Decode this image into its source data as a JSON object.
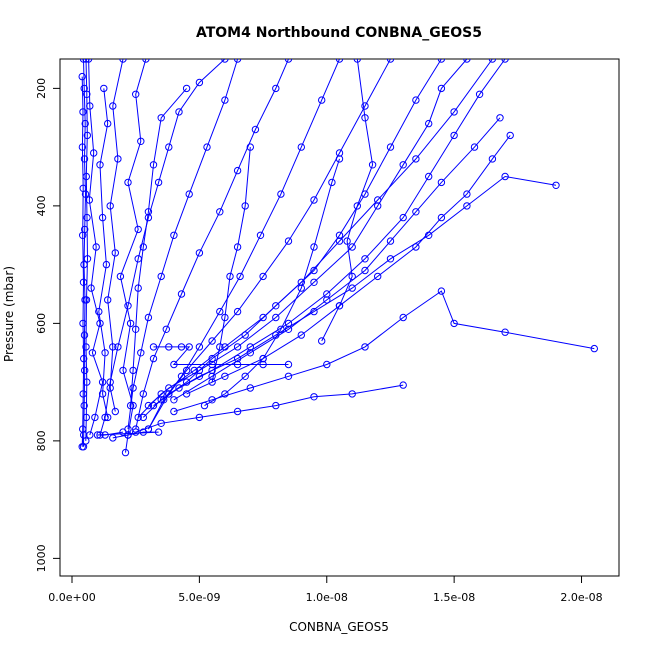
{
  "chart_data": {
    "type": "line",
    "title": "ATOM4 Northbound CONBNA_GEOS5",
    "xlabel": "CONBNA_GEOS5",
    "ylabel": "Pressure (mbar)",
    "xlim": [
      0,
      2.1e-08
    ],
    "ylim": [
      1030,
      150
    ],
    "y_reversed": true,
    "grid": false,
    "legend": "none",
    "x_ticks": [
      {
        "value": 0,
        "label": "0.0e+00"
      },
      {
        "value": 5e-09,
        "label": "5.0e-09"
      },
      {
        "value": 1e-08,
        "label": "1.0e-08"
      },
      {
        "value": 1.5e-08,
        "label": "1.5e-08"
      },
      {
        "value": 2e-08,
        "label": "2.0e-08"
      }
    ],
    "y_ticks": [
      {
        "value": 200,
        "label": "200"
      },
      {
        "value": 400,
        "label": "400"
      },
      {
        "value": 600,
        "label": "600"
      },
      {
        "value": 800,
        "label": "800"
      },
      {
        "value": 1000,
        "label": "1000"
      }
    ],
    "color": "#0000ff",
    "series": [
      {
        "points": [
          [
            4.5e-10,
            150
          ],
          [
            4.8e-10,
            200
          ],
          [
            5.2e-10,
            260
          ],
          [
            4.9e-10,
            320
          ],
          [
            5.3e-10,
            380
          ],
          [
            5e-10,
            440
          ],
          [
            4.7e-10,
            500
          ],
          [
            5.1e-10,
            560
          ],
          [
            4.9e-10,
            620
          ],
          [
            5e-10,
            680
          ],
          [
            4.8e-10,
            740
          ],
          [
            4.6e-10,
            790
          ],
          [
            4.5e-10,
            810
          ]
        ]
      },
      {
        "points": [
          [
            5.5e-10,
            150
          ],
          [
            5.8e-10,
            210
          ],
          [
            6e-10,
            280
          ],
          [
            5.6e-10,
            350
          ],
          [
            5.9e-10,
            420
          ],
          [
            6.1e-10,
            490
          ],
          [
            5.7e-10,
            560
          ],
          [
            5.5e-10,
            640
          ],
          [
            5.8e-10,
            700
          ],
          [
            5.6e-10,
            760
          ],
          [
            5.4e-10,
            800
          ]
        ]
      },
      {
        "points": [
          [
            4e-10,
            180
          ],
          [
            4.3e-10,
            240
          ],
          [
            4.1e-10,
            300
          ],
          [
            4.4e-10,
            370
          ],
          [
            4.2e-10,
            450
          ],
          [
            4.5e-10,
            530
          ],
          [
            4.3e-10,
            600
          ],
          [
            4.6e-10,
            660
          ],
          [
            4.4e-10,
            720
          ],
          [
            4.2e-10,
            780
          ],
          [
            4e-10,
            810
          ]
        ]
      },
      {
        "points": [
          [
            6.5e-10,
            150
          ],
          [
            7e-10,
            230
          ],
          [
            8.5e-10,
            310
          ],
          [
            6.8e-10,
            390
          ],
          [
            9.5e-10,
            470
          ],
          [
            7.5e-10,
            540
          ],
          [
            1.1e-09,
            600
          ],
          [
            8e-10,
            650
          ],
          [
            1.2e-09,
            700
          ],
          [
            9e-10,
            760
          ],
          [
            7e-10,
            790
          ]
        ]
      },
      {
        "points": [
          [
            6e-09,
            150
          ],
          [
            5e-09,
            190
          ],
          [
            4.2e-09,
            240
          ],
          [
            3.8e-09,
            300
          ],
          [
            3.4e-09,
            360
          ],
          [
            3e-09,
            420
          ],
          [
            2.6e-09,
            490
          ],
          [
            2.2e-09,
            570
          ],
          [
            1.8e-09,
            640
          ],
          [
            1.5e-09,
            700
          ],
          [
            1.3e-09,
            760
          ],
          [
            1.1e-09,
            790
          ]
        ]
      },
      {
        "points": [
          [
            2.9e-09,
            150
          ],
          [
            2.5e-09,
            210
          ],
          [
            2.7e-09,
            290
          ],
          [
            2.2e-09,
            360
          ],
          [
            2.6e-09,
            440
          ],
          [
            1.9e-09,
            520
          ],
          [
            2.3e-09,
            600
          ],
          [
            2e-09,
            680
          ],
          [
            2.4e-09,
            740
          ],
          [
            2.2e-09,
            790
          ],
          [
            2.1e-09,
            820
          ]
        ]
      },
      {
        "points": [
          [
            1.25e-09,
            200
          ],
          [
            1.4e-09,
            260
          ],
          [
            1.1e-09,
            330
          ],
          [
            1.2e-09,
            420
          ],
          [
            1.35e-09,
            500
          ],
          [
            1.05e-09,
            580
          ],
          [
            1.3e-09,
            650
          ],
          [
            1.2e-09,
            720
          ],
          [
            1.4e-09,
            760
          ]
        ]
      },
      {
        "points": [
          [
            2e-09,
            150
          ],
          [
            1.6e-09,
            230
          ],
          [
            1.8e-09,
            320
          ],
          [
            1.5e-09,
            400
          ],
          [
            1.7e-09,
            480
          ],
          [
            1.4e-09,
            560
          ],
          [
            1.6e-09,
            640
          ],
          [
            1.5e-09,
            710
          ],
          [
            1.7e-09,
            750
          ]
        ]
      },
      {
        "points": [
          [
            1.55e-08,
            150
          ],
          [
            1.45e-08,
            200
          ],
          [
            1.4e-08,
            260
          ],
          [
            1.3e-08,
            330
          ],
          [
            1.2e-08,
            400
          ],
          [
            1.1e-08,
            470
          ],
          [
            9.5e-09,
            530
          ],
          [
            8e-09,
            590
          ],
          [
            6.5e-09,
            640
          ],
          [
            5e-09,
            680
          ],
          [
            3.8e-09,
            710
          ],
          [
            3e-09,
            740
          ]
        ]
      },
      {
        "points": [
          [
            1.7e-08,
            150
          ],
          [
            1.6e-08,
            210
          ],
          [
            1.5e-08,
            280
          ],
          [
            1.4e-08,
            350
          ],
          [
            1.3e-08,
            420
          ],
          [
            1.15e-08,
            490
          ],
          [
            1e-08,
            550
          ],
          [
            8.5e-09,
            600
          ],
          [
            7e-09,
            640
          ],
          [
            5.5e-09,
            680
          ],
          [
            4.2e-09,
            710
          ],
          [
            3.2e-09,
            740
          ]
        ]
      },
      {
        "points": [
          [
            1.65e-08,
            150
          ],
          [
            1.5e-08,
            240
          ],
          [
            1.35e-08,
            320
          ],
          [
            1.2e-08,
            390
          ],
          [
            1.05e-08,
            460
          ],
          [
            9e-09,
            530
          ],
          [
            7.5e-09,
            590
          ],
          [
            6e-09,
            640
          ],
          [
            4.8e-09,
            680
          ],
          [
            3.5e-09,
            720
          ],
          [
            2.6e-09,
            760
          ]
        ]
      },
      {
        "points": [
          [
            1.45e-08,
            150
          ],
          [
            1.35e-08,
            220
          ],
          [
            1.25e-08,
            300
          ],
          [
            1.15e-08,
            380
          ],
          [
            1.05e-08,
            450
          ],
          [
            9.5e-09,
            510
          ],
          [
            8e-09,
            570
          ],
          [
            6.8e-09,
            620
          ],
          [
            5.5e-09,
            660
          ],
          [
            4.5e-09,
            700
          ],
          [
            3.5e-09,
            730
          ],
          [
            2.8e-09,
            760
          ]
        ]
      },
      {
        "points": [
          [
            1.25e-08,
            150
          ],
          [
            1.15e-08,
            230
          ],
          [
            1.05e-08,
            310
          ],
          [
            9.5e-09,
            390
          ],
          [
            8.5e-09,
            460
          ],
          [
            7.5e-09,
            520
          ],
          [
            6.5e-09,
            580
          ],
          [
            5.5e-09,
            630
          ],
          [
            4.5e-09,
            680
          ],
          [
            3.8e-09,
            720
          ],
          [
            3e-09,
            780
          ]
        ]
      },
      {
        "points": [
          [
            1.05e-08,
            150
          ],
          [
            9.8e-09,
            220
          ],
          [
            9e-09,
            300
          ],
          [
            8.2e-09,
            380
          ],
          [
            7.4e-09,
            450
          ],
          [
            6.6e-09,
            520
          ],
          [
            5.8e-09,
            580
          ],
          [
            5e-09,
            640
          ],
          [
            4.3e-09,
            690
          ],
          [
            3.6e-09,
            730
          ],
          [
            3e-09,
            780
          ]
        ]
      },
      {
        "points": [
          [
            8.5e-09,
            150
          ],
          [
            8e-09,
            200
          ],
          [
            7.2e-09,
            270
          ],
          [
            6.5e-09,
            340
          ],
          [
            5.8e-09,
            410
          ],
          [
            5e-09,
            480
          ],
          [
            4.3e-09,
            550
          ],
          [
            3.7e-09,
            610
          ],
          [
            3.2e-09,
            660
          ],
          [
            2.8e-09,
            720
          ],
          [
            2.5e-09,
            780
          ]
        ]
      },
      {
        "points": [
          [
            6.5e-09,
            150
          ],
          [
            6e-09,
            220
          ],
          [
            5.3e-09,
            300
          ],
          [
            4.6e-09,
            380
          ],
          [
            4e-09,
            450
          ],
          [
            3.5e-09,
            520
          ],
          [
            3e-09,
            590
          ],
          [
            2.7e-09,
            650
          ],
          [
            2.4e-09,
            710
          ],
          [
            2.2e-09,
            780
          ]
        ]
      },
      {
        "points": [
          [
            1.9e-08,
            365
          ],
          [
            1.7e-08,
            350
          ],
          [
            1.55e-08,
            400
          ],
          [
            1.4e-08,
            450
          ],
          [
            1.25e-08,
            490
          ],
          [
            1.1e-08,
            540
          ],
          [
            9.5e-09,
            580
          ],
          [
            8e-09,
            620
          ],
          [
            6.5e-09,
            660
          ],
          [
            5e-09,
            690
          ],
          [
            3.8e-09,
            720
          ]
        ]
      },
      {
        "points": [
          [
            2.05e-08,
            643
          ],
          [
            1.7e-08,
            615
          ],
          [
            1.5e-08,
            600
          ],
          [
            1.45e-08,
            545
          ],
          [
            1.3e-08,
            590
          ],
          [
            1.15e-08,
            640
          ],
          [
            1e-08,
            670
          ],
          [
            8.5e-09,
            690
          ],
          [
            7e-09,
            710
          ],
          [
            5.5e-09,
            730
          ],
          [
            4e-09,
            750
          ]
        ]
      },
      {
        "points": [
          [
            1.3e-08,
            705
          ],
          [
            1.1e-08,
            720
          ],
          [
            9.5e-09,
            725
          ],
          [
            8e-09,
            740
          ],
          [
            6.5e-09,
            750
          ],
          [
            5e-09,
            760
          ],
          [
            3.5e-09,
            770
          ],
          [
            2.5e-09,
            785
          ]
        ]
      },
      {
        "points": [
          [
            1.72e-08,
            280
          ],
          [
            1.65e-08,
            320
          ],
          [
            1.55e-08,
            380
          ],
          [
            1.45e-08,
            420
          ],
          [
            1.35e-08,
            470
          ],
          [
            1.2e-08,
            520
          ],
          [
            1.05e-08,
            570
          ],
          [
            9e-09,
            620
          ],
          [
            7.5e-09,
            660
          ],
          [
            6e-09,
            690
          ],
          [
            4.5e-09,
            720
          ]
        ]
      },
      {
        "points": [
          [
            1.68e-08,
            250
          ],
          [
            1.58e-08,
            300
          ],
          [
            1.45e-08,
            360
          ],
          [
            1.35e-08,
            410
          ],
          [
            1.25e-08,
            460
          ],
          [
            1.15e-08,
            510
          ],
          [
            1e-08,
            560
          ],
          [
            8.5e-09,
            610
          ],
          [
            7e-09,
            650
          ],
          [
            5.5e-09,
            690
          ],
          [
            4e-09,
            730
          ]
        ]
      },
      {
        "points": [
          [
            1.05e-08,
            320
          ],
          [
            1.02e-08,
            360
          ],
          [
            9.5e-09,
            470
          ],
          [
            9e-09,
            540
          ],
          [
            8.2e-09,
            610
          ],
          [
            7.5e-09,
            660
          ],
          [
            6.8e-09,
            690
          ],
          [
            6e-09,
            720
          ],
          [
            5.2e-09,
            740
          ]
        ]
      },
      {
        "points": [
          [
            1.12e-08,
            150
          ],
          [
            1.15e-08,
            250
          ],
          [
            1.18e-08,
            330
          ],
          [
            1.12e-08,
            400
          ],
          [
            1.08e-08,
            460
          ],
          [
            1.1e-08,
            520
          ],
          [
            1.05e-08,
            570
          ],
          [
            9.8e-09,
            630
          ]
        ]
      },
      {
        "points": [
          [
            1.6e-09,
            795
          ],
          [
            2.2e-09,
            790
          ],
          [
            2.8e-09,
            785
          ],
          [
            3.4e-09,
            785
          ],
          [
            1e-09,
            790
          ],
          [
            1.3e-09,
            790
          ],
          [
            2e-09,
            785
          ]
        ]
      },
      {
        "points": [
          [
            3.2e-09,
            640
          ],
          [
            3.8e-09,
            640
          ],
          [
            4.3e-09,
            640
          ],
          [
            4.6e-09,
            640
          ],
          [
            4e-09,
            670
          ],
          [
            5.5e-09,
            670
          ],
          [
            6.5e-09,
            670
          ],
          [
            7.5e-09,
            670
          ],
          [
            8.5e-09,
            670
          ]
        ]
      },
      {
        "points": [
          [
            7e-09,
            300
          ],
          [
            6.8e-09,
            400
          ],
          [
            6.5e-09,
            470
          ],
          [
            6.2e-09,
            520
          ],
          [
            6e-09,
            590
          ],
          [
            5.8e-09,
            640
          ],
          [
            5.5e-09,
            700
          ]
        ]
      },
      {
        "points": [
          [
            4.5e-09,
            200
          ],
          [
            3.5e-09,
            250
          ],
          [
            3.2e-09,
            330
          ],
          [
            3e-09,
            410
          ],
          [
            2.8e-09,
            470
          ],
          [
            2.6e-09,
            540
          ],
          [
            2.5e-09,
            610
          ],
          [
            2.4e-09,
            680
          ],
          [
            2.3e-09,
            740
          ]
        ]
      }
    ]
  }
}
